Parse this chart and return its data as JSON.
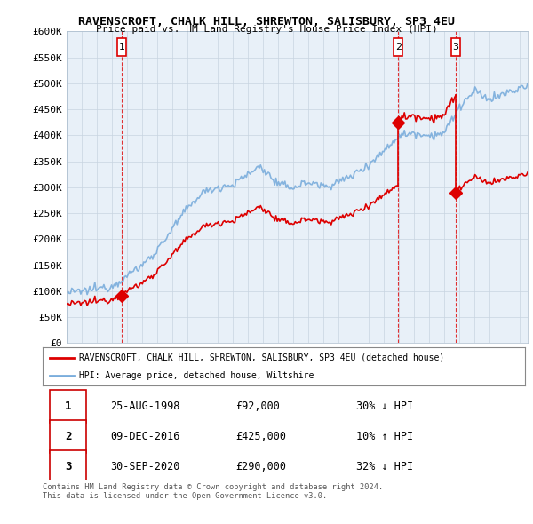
{
  "title": "RAVENSCROFT, CHALK HILL, SHREWTON, SALISBURY, SP3 4EU",
  "subtitle": "Price paid vs. HM Land Registry's House Price Index (HPI)",
  "ylim": [
    0,
    600000
  ],
  "yticks": [
    0,
    50000,
    100000,
    150000,
    200000,
    250000,
    300000,
    350000,
    400000,
    450000,
    500000,
    550000,
    600000
  ],
  "ytick_labels": [
    "£0",
    "£50K",
    "£100K",
    "£150K",
    "£200K",
    "£250K",
    "£300K",
    "£350K",
    "£400K",
    "£450K",
    "£500K",
    "£550K",
    "£600K"
  ],
  "hpi_color": "#7aaddc",
  "sale_color": "#dd0000",
  "vline_color": "#dd0000",
  "chart_bg": "#e8f0f8",
  "sale_points": [
    {
      "date_num": 1998.65,
      "price": 92000,
      "label": "1"
    },
    {
      "date_num": 2016.94,
      "price": 425000,
      "label": "2"
    },
    {
      "date_num": 2020.75,
      "price": 290000,
      "label": "3"
    }
  ],
  "legend_entries": [
    "RAVENSCROFT, CHALK HILL, SHREWTON, SALISBURY, SP3 4EU (detached house)",
    "HPI: Average price, detached house, Wiltshire"
  ],
  "table_rows": [
    [
      "1",
      "25-AUG-1998",
      "£92,000",
      "30% ↓ HPI"
    ],
    [
      "2",
      "09-DEC-2016",
      "£425,000",
      "10% ↑ HPI"
    ],
    [
      "3",
      "30-SEP-2020",
      "£290,000",
      "32% ↓ HPI"
    ]
  ],
  "footer": "Contains HM Land Registry data © Crown copyright and database right 2024.\nThis data is licensed under the Open Government Licence v3.0.",
  "background_color": "#ffffff",
  "grid_color": "#c8d4e0"
}
